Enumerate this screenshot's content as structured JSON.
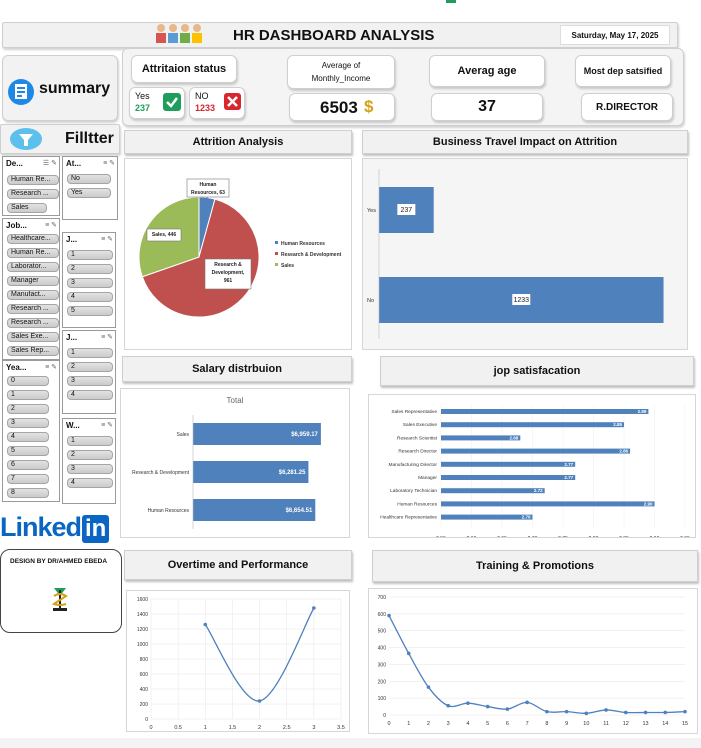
{
  "header": {
    "title": "HR DASHBOARD ANALYSIS",
    "date": "Saturday, May 17, 2025"
  },
  "summary": {
    "label": "summary",
    "filter_label": "Filltter"
  },
  "kpis": {
    "attrition_status_label": "Attritaion status",
    "yes_label": "Yes",
    "yes_value": "237",
    "no_label": "NO",
    "no_value": "1233",
    "avg_income_label_1": "Average of",
    "avg_income_label_2": "Monthly_Income",
    "avg_income_value": "6503",
    "currency_symbol": "$",
    "avg_age_label": "Averag age",
    "avg_age_value": "37",
    "most_dep_label": "Most dep satsified",
    "most_dep_value": "R.DIRECTOR"
  },
  "panels": {
    "attrition_analysis": "Attrition Analysis",
    "business_travel": "Business Travel Impact on Attrition",
    "salary": "Salary distrbuion",
    "job_satisfaction": "jop satisfacation",
    "overtime": "Overtime and Performance",
    "training": "Training & Promotions"
  },
  "slicers": {
    "department": {
      "title": "De...",
      "items": [
        "Human Re...",
        "Research ...",
        "Sales"
      ]
    },
    "attrition": {
      "title": "At...",
      "items": [
        "No",
        "Yes"
      ]
    },
    "jobrole": {
      "title": "Job...",
      "items": [
        "Healthcare...",
        "Human Re...",
        "Laborator...",
        "Manager",
        "Manufact...",
        "Research ...",
        "Research ...",
        "Sales Exe...",
        "Sales Rep..."
      ]
    },
    "j1": {
      "title": "J...",
      "items": [
        "1",
        "2",
        "3",
        "4",
        "5"
      ]
    },
    "j2": {
      "title": "J...",
      "items": [
        "1",
        "2",
        "3",
        "4"
      ]
    },
    "years": {
      "title": "Yea...",
      "items": [
        "0",
        "1",
        "2",
        "3",
        "4",
        "5",
        "6",
        "7",
        "8"
      ]
    },
    "w": {
      "title": "W...",
      "items": [
        "1",
        "2",
        "3",
        "4"
      ]
    }
  },
  "branding": {
    "linkedin_text": "Linked",
    "linkedin_in": "in",
    "designer": "DESIGN BY DR/AHMED EBEDA"
  },
  "colors": {
    "blue": "#4f81bd",
    "red": "#c0504d",
    "green": "#9bbb59",
    "check_green": "#1e9e5a",
    "x_red": "#d9262c",
    "gold": "#d4a017",
    "linkedin_blue": "#0a66c2"
  },
  "chart_data": [
    {
      "id": "attrition_pie",
      "type": "pie",
      "categories": [
        "Human Resources",
        "Research & Development",
        "Sales"
      ],
      "values": [
        63,
        961,
        446
      ],
      "data_labels": [
        "Human Resources, 63",
        "Research & Development, 961",
        "Sales, 446"
      ],
      "legend": [
        "Human Resources",
        "Research & Development",
        "Sales"
      ]
    },
    {
      "id": "business_travel",
      "type": "bar",
      "categories": [
        "Yes",
        "No"
      ],
      "values": [
        237,
        1233
      ]
    },
    {
      "id": "salary",
      "type": "bar",
      "title": "Total",
      "categories": [
        "Sales",
        "Research & Development",
        "Human Resources"
      ],
      "values": [
        6959.17,
        6281.25,
        6654.51
      ],
      "data_labels": [
        "$6,959.17",
        "$6,281.25",
        "$6,654.51"
      ]
    },
    {
      "id": "job_satisfaction",
      "type": "bar",
      "categories": [
        "Sales Representative",
        "Sales Executive",
        "Research Scientist",
        "Research Director",
        "Manufacturing Director",
        "Manager",
        "Laboratory Technician",
        "Human Resources",
        "Healthcare Representative"
      ],
      "values": [
        2.89,
        2.85,
        2.68,
        2.86,
        2.77,
        2.77,
        2.72,
        2.9,
        2.7
      ],
      "data_labels": [
        "2.89",
        "2.85",
        "2.68",
        "2.86",
        "2.77",
        "2.77",
        "2.72",
        "2.90",
        "2.70"
      ],
      "xlim": [
        2.55,
        2.95
      ],
      "xticks": [
        "2.55",
        "2.60",
        "2.65",
        "2.70",
        "2.75",
        "2.80",
        "2.85",
        "2.90",
        "2.95"
      ]
    },
    {
      "id": "overtime",
      "type": "line",
      "x": [
        1,
        2,
        3
      ],
      "values": [
        1260,
        240,
        1480
      ],
      "xlim": [
        0,
        3.5
      ],
      "ylim": [
        0,
        1600
      ],
      "xticks": [
        "0",
        "0.5",
        "1",
        "1.5",
        "2",
        "2.5",
        "3",
        "3.5"
      ],
      "yticks": [
        "0",
        "200",
        "400",
        "600",
        "800",
        "1000",
        "1200",
        "1400",
        "1600"
      ]
    },
    {
      "id": "training",
      "type": "line",
      "x": [
        0,
        1,
        2,
        3,
        4,
        5,
        6,
        7,
        8,
        9,
        10,
        11,
        12,
        13,
        14,
        15
      ],
      "values": [
        590,
        365,
        165,
        55,
        70,
        50,
        35,
        75,
        20,
        20,
        10,
        30,
        15,
        15,
        15,
        20
      ],
      "xlim": [
        0,
        15
      ],
      "ylim": [
        0,
        700
      ],
      "xticks": [
        "0",
        "1",
        "2",
        "3",
        "4",
        "5",
        "6",
        "7",
        "8",
        "9",
        "10",
        "11",
        "12",
        "13",
        "14",
        "15"
      ],
      "yticks": [
        "0",
        "100",
        "200",
        "300",
        "400",
        "500",
        "600",
        "700"
      ]
    }
  ]
}
